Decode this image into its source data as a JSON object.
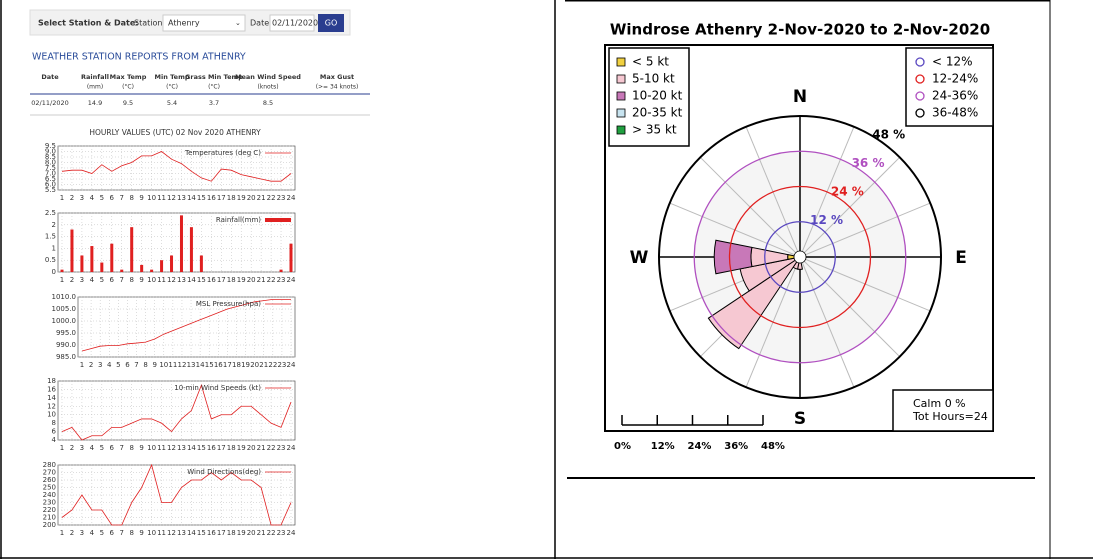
{
  "form": {
    "label": "Select Station & Date:",
    "station_label": "Station",
    "station": "Athenry",
    "date_label": "Date",
    "date": "02/11/2020",
    "button": "GO"
  },
  "report": {
    "heading": "WEATHER STATION REPORTS FROM ATHENRY",
    "headers": [
      {
        "name": "Date"
      },
      {
        "name": "Rainfall",
        "unit": "(mm)"
      },
      {
        "name": "Max Temp",
        "unit": "(°C)"
      },
      {
        "name": "Min Temp",
        "unit": "(°C)"
      },
      {
        "name": "Grass Min Temp",
        "unit": "(°C)"
      },
      {
        "name": "Mean Wind Speed",
        "unit": "(knots)"
      },
      {
        "name": "Max Gust",
        "unit": "(>= 34 knots)"
      }
    ],
    "row": [
      "02/11/2020",
      "14.9",
      "9.5",
      "5.4",
      "3.7",
      "8.5"
    ],
    "hourly_title": "HOURLY VALUES (UTC) 02 Nov 2020  ATHENRY"
  },
  "chart_data": [
    {
      "type": "line",
      "series": [
        {
          "name": "Temperatures (deg C)",
          "color": "#e02020",
          "values": [
            7.2,
            7.3,
            7.3,
            7.0,
            7.8,
            7.2,
            7.7,
            8.0,
            8.6,
            8.6,
            9.0,
            8.3,
            7.9,
            7.2,
            6.6,
            6.3,
            7.4,
            7.3,
            6.9,
            6.7,
            6.5,
            6.3,
            6.3,
            7.0
          ]
        }
      ],
      "x": [
        1,
        2,
        3,
        4,
        5,
        6,
        7,
        8,
        9,
        10,
        11,
        12,
        13,
        14,
        15,
        16,
        17,
        18,
        19,
        20,
        21,
        22,
        23,
        24
      ],
      "xlim": [
        1,
        24
      ],
      "xticks": [
        1,
        2,
        3,
        4,
        5,
        6,
        7,
        8,
        9,
        10,
        11,
        12,
        13,
        14,
        15,
        16,
        17,
        18,
        19,
        20,
        21,
        22,
        23,
        24
      ],
      "ylim": [
        5.5,
        9.5
      ],
      "yticks": [
        5.5,
        {
          "value": 6,
          "label": "6.0"
        },
        6.5,
        {
          "value": 7,
          "label": "7.0"
        },
        7.5,
        {
          "value": 8,
          "label": "8.0"
        },
        8.5,
        {
          "value": 9,
          "label": "9.0"
        },
        9.5
      ],
      "grid": true
    },
    {
      "type": "bar",
      "series": [
        {
          "name": "Rainfall(mm)",
          "color": "#e02020",
          "values": [
            0.1,
            1.8,
            0.7,
            1.1,
            0.4,
            1.2,
            0.1,
            1.9,
            0.3,
            0.1,
            0.5,
            0.7,
            2.4,
            1.9,
            0.7,
            0,
            0,
            0,
            0,
            0,
            0,
            0,
            0.1,
            1.2
          ]
        }
      ],
      "x": [
        1,
        2,
        3,
        4,
        5,
        6,
        7,
        8,
        9,
        10,
        11,
        12,
        13,
        14,
        15,
        16,
        17,
        18,
        19,
        20,
        21,
        22,
        23,
        24
      ],
      "xlim": [
        1,
        24
      ],
      "xticks": [
        1,
        2,
        3,
        4,
        5,
        6,
        7,
        8,
        9,
        10,
        11,
        12,
        13,
        14,
        15,
        16,
        17,
        18,
        19,
        20,
        21,
        22,
        23,
        24
      ],
      "ylim": [
        0,
        2.5
      ],
      "yticks": [
        0,
        0.5,
        1,
        1.5,
        2,
        2.5
      ],
      "grid": true
    },
    {
      "type": "line",
      "series": [
        {
          "name": "MSL Pressure(hpa)",
          "color": "#e02020",
          "values": [
            987.5,
            988.5,
            989.5,
            989.8,
            989.8,
            990.5,
            990.8,
            991.2,
            992.5,
            994.5,
            996,
            997.5,
            999,
            1000.5,
            1002,
            1003.5,
            1005,
            1006,
            1007,
            1008,
            1008.5,
            1009,
            1009,
            1009
          ]
        }
      ],
      "x": [
        1,
        2,
        3,
        4,
        5,
        6,
        7,
        8,
        9,
        10,
        11,
        12,
        13,
        14,
        15,
        16,
        17,
        18,
        19,
        20,
        21,
        22,
        23,
        24
      ],
      "xlim": [
        1,
        24
      ],
      "xticks": [
        1,
        2,
        3,
        4,
        5,
        6,
        7,
        8,
        9,
        10,
        11,
        12,
        13,
        14,
        15,
        16,
        17,
        18,
        19,
        20,
        21,
        22,
        23,
        24
      ],
      "ylim": [
        985,
        1010
      ],
      "yticks": [
        {
          "value": 985,
          "label": "985.0"
        },
        {
          "value": 990,
          "label": "990.0"
        },
        {
          "value": 995,
          "label": "995.0"
        },
        {
          "value": 1000,
          "label": "1000.0"
        },
        {
          "value": 1005,
          "label": "1005.0"
        },
        {
          "value": 1010,
          "label": "1010.0"
        }
      ],
      "grid": true
    },
    {
      "type": "line",
      "series": [
        {
          "name": "10-min Wind Speeds (kt)",
          "color": "#e02020",
          "values": [
            6,
            7,
            4,
            5,
            5,
            7,
            7,
            8,
            9,
            9,
            8,
            6,
            9,
            11,
            17,
            9,
            10,
            10,
            12,
            12,
            10,
            8,
            7,
            13
          ]
        }
      ],
      "x": [
        1,
        2,
        3,
        4,
        5,
        6,
        7,
        8,
        9,
        10,
        11,
        12,
        13,
        14,
        15,
        16,
        17,
        18,
        19,
        20,
        21,
        22,
        23,
        24
      ],
      "xlim": [
        1,
        24
      ],
      "xticks": [
        1,
        2,
        3,
        4,
        5,
        6,
        7,
        8,
        9,
        10,
        11,
        12,
        13,
        14,
        15,
        16,
        17,
        18,
        19,
        20,
        21,
        22,
        23,
        24
      ],
      "ylim": [
        4,
        18
      ],
      "yticks": [
        4,
        6,
        8,
        10,
        12,
        14,
        16,
        18
      ],
      "grid": true
    },
    {
      "type": "line",
      "series": [
        {
          "name": "Wind Directions(deg)",
          "color": "#e02020",
          "values": [
            210,
            220,
            240,
            220,
            220,
            200,
            200,
            230,
            250,
            280,
            230,
            230,
            250,
            260,
            260,
            270,
            260,
            270,
            260,
            260,
            250,
            200,
            200,
            230
          ]
        }
      ],
      "x": [
        1,
        2,
        3,
        4,
        5,
        6,
        7,
        8,
        9,
        10,
        11,
        12,
        13,
        14,
        15,
        16,
        17,
        18,
        19,
        20,
        21,
        22,
        23,
        24
      ],
      "xlim": [
        1,
        24
      ],
      "xticks": [
        1,
        2,
        3,
        4,
        5,
        6,
        7,
        8,
        9,
        10,
        11,
        12,
        13,
        14,
        15,
        16,
        17,
        18,
        19,
        20,
        21,
        22,
        23,
        24
      ],
      "ylim": [
        200,
        280
      ],
      "yticks": [
        200,
        210,
        220,
        230,
        240,
        250,
        260,
        270,
        280
      ],
      "grid": true
    },
    {
      "type": "windrose",
      "title": "Windrose  Athenry 2-Nov-2020 to 2-Nov-2020",
      "categories": [
        "N",
        null,
        null,
        null,
        "E",
        null,
        null,
        null,
        "S",
        null,
        null,
        null,
        "W",
        null,
        null,
        null
      ],
      "series": [
        {
          "name": "< 5  kt",
          "color": "#f0d040",
          "values": [
            0,
            0,
            0,
            0,
            0,
            0,
            0,
            0,
            0,
            0,
            0,
            0,
            4.2,
            0,
            0,
            0
          ]
        },
        {
          "name": "5-10 kt",
          "color": "#f6c8d2",
          "values": [
            0,
            0,
            0,
            0,
            0,
            0,
            0,
            0,
            4.2,
            4.2,
            37.5,
            20.8,
            12.5,
            0,
            0,
            0
          ]
        },
        {
          "name": "10-20 kt",
          "color": "#c878b8",
          "values": [
            0,
            0,
            0,
            0,
            0,
            0,
            0,
            0,
            0,
            0,
            0,
            0,
            12.5,
            0,
            0,
            0
          ]
        },
        {
          "name": "20-35 kt",
          "color": "#c8e4f0",
          "values": [
            0,
            0,
            0,
            0,
            0,
            0,
            0,
            0,
            0,
            0,
            0,
            0,
            0,
            0,
            0,
            0
          ]
        },
        {
          "name": "> 35 kt",
          "color": "#20a040",
          "values": [
            0,
            0,
            0,
            0,
            0,
            0,
            0,
            0,
            0,
            0,
            0,
            0,
            0,
            0,
            0,
            0
          ]
        }
      ],
      "rlim": [
        0,
        48
      ],
      "rticks": [
        {
          "value": 12,
          "label": "12 %",
          "color": "#5a48c0"
        },
        {
          "value": 24,
          "label": "24 %",
          "color": "#e02020"
        },
        {
          "value": 36,
          "label": "36 %",
          "color": "#b050c0"
        },
        {
          "value": 48,
          "label": "48 %",
          "color": "#000000"
        }
      ],
      "ring_legend": [
        "< 12%",
        "12-24%",
        "24-36%",
        "36-48%"
      ],
      "scale_ticks": [
        {
          "value": 0,
          "label": "0%"
        },
        {
          "value": 12,
          "label": "12%"
        },
        {
          "value": 24,
          "label": "24%"
        },
        {
          "value": 36,
          "label": "36%"
        },
        {
          "value": 48,
          "label": "48%"
        }
      ],
      "calm_label": "Calm 0 %",
      "total_label": "Tot Hours=24"
    }
  ]
}
